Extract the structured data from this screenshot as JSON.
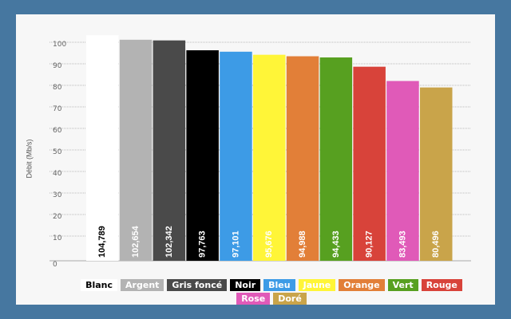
{
  "chart_data": {
    "type": "bar",
    "ylabel": "Débit (Mb/s)",
    "ylim": [
      0,
      100
    ],
    "yticks": [
      0,
      10,
      20,
      30,
      40,
      50,
      60,
      70,
      80,
      90,
      100
    ],
    "grid": true,
    "legend_placement": "bottom",
    "categories": [
      "Blanc",
      "Argent",
      "Gris foncé",
      "Noir",
      "Bleu",
      "Jaune",
      "Orange",
      "Vert",
      "Rouge",
      "Rose",
      "Doré"
    ],
    "values": [
      104.789,
      102.654,
      102.342,
      97.763,
      97.101,
      95.676,
      94.988,
      94.433,
      90.127,
      83.493,
      80.496
    ],
    "data_labels": [
      "104,789",
      "102,654",
      "102,342",
      "97,763",
      "97,101",
      "95,676",
      "94,988",
      "94,433",
      "90,127",
      "83,493",
      "80,496"
    ],
    "colors": [
      "#ffffff",
      "#b3b3b3",
      "#4a4a4a",
      "#000000",
      "#3d9be6",
      "#fff538",
      "#e27f38",
      "#57a020",
      "#d8433a",
      "#e05ab8",
      "#c9a44a"
    ],
    "label_colors": [
      "#000000",
      "#ffffff",
      "#ffffff",
      "#ffffff",
      "#ffffff",
      "#ffffff",
      "#ffffff",
      "#ffffff",
      "#ffffff",
      "#ffffff",
      "#ffffff"
    ]
  }
}
